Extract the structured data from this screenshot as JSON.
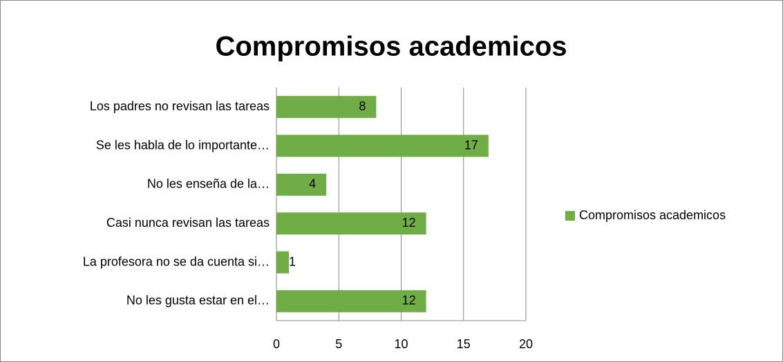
{
  "chart_data": {
    "type": "bar",
    "orientation": "horizontal",
    "title": "Compromisos academicos",
    "categories": [
      "Los padres no revisan las tareas",
      "Se les habla de lo importante…",
      "No les enseña de la…",
      "Casi nunca revisan las tareas",
      "La profesora no se da cuenta si…",
      "No les gusta estar en el…"
    ],
    "series": [
      {
        "name": "Compromisos academicos",
        "color": "#70ad47",
        "values": [
          8,
          17,
          4,
          12,
          1,
          12
        ]
      }
    ],
    "xlim": [
      0,
      20
    ],
    "xticks": [
      0,
      5,
      10,
      15,
      20
    ],
    "grid": true,
    "legend": "right"
  }
}
